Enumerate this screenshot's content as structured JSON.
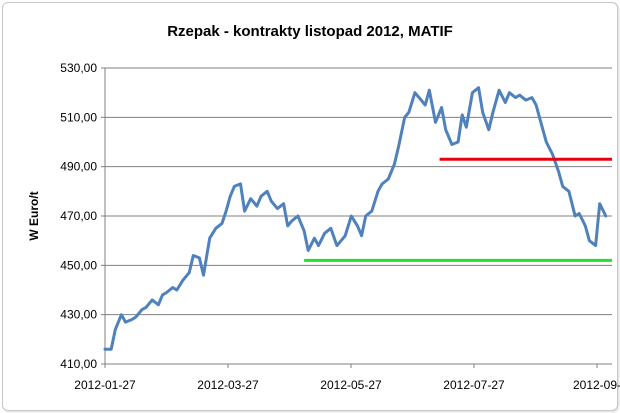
{
  "chart_data": {
    "type": "line",
    "title": "Rzepak - kontrakty listopad 2012, MATIF",
    "xlabel": "",
    "ylabel": "W Euro/t",
    "ylim": [
      410,
      530
    ],
    "y_ticks": [
      "410,00",
      "430,00",
      "450,00",
      "470,00",
      "490,00",
      "510,00",
      "530,00"
    ],
    "x_ticks": [
      "2012-01-27",
      "2012-03-27",
      "2012-05-27",
      "2012-07-27",
      "2012-09-"
    ],
    "x_range": [
      "2012-01-27",
      "2012-09-30"
    ],
    "grid": "horizontal",
    "series": [
      {
        "color": "#4f81bd",
        "x": [
          "2012-01-27",
          "2012-01-30",
          "2012-02-01",
          "2012-02-04",
          "2012-02-06",
          "2012-02-09",
          "2012-02-11",
          "2012-02-14",
          "2012-02-16",
          "2012-02-19",
          "2012-02-22",
          "2012-02-24",
          "2012-02-26",
          "2012-02-29",
          "2012-03-02",
          "2012-03-05",
          "2012-03-08",
          "2012-03-10",
          "2012-03-13",
          "2012-03-15",
          "2012-03-18",
          "2012-03-21",
          "2012-03-24",
          "2012-03-26",
          "2012-03-28",
          "2012-03-30",
          "2012-04-02",
          "2012-04-04",
          "2012-04-07",
          "2012-04-10",
          "2012-04-12",
          "2012-04-15",
          "2012-04-17",
          "2012-04-20",
          "2012-04-23",
          "2012-04-25",
          "2012-04-27",
          "2012-04-30",
          "2012-05-03",
          "2012-05-05",
          "2012-05-08",
          "2012-05-10",
          "2012-05-13",
          "2012-05-16",
          "2012-05-19",
          "2012-05-21",
          "2012-05-23",
          "2012-05-26",
          "2012-05-29",
          "2012-05-31",
          "2012-06-02",
          "2012-06-05",
          "2012-06-08",
          "2012-06-10",
          "2012-06-13",
          "2012-06-16",
          "2012-06-18",
          "2012-06-21",
          "2012-06-23",
          "2012-06-26",
          "2012-06-28",
          "2012-07-01",
          "2012-07-03",
          "2012-07-06",
          "2012-07-09",
          "2012-07-11",
          "2012-07-14",
          "2012-07-17",
          "2012-07-19",
          "2012-07-21",
          "2012-07-24",
          "2012-07-27",
          "2012-07-29",
          "2012-08-01",
          "2012-08-03",
          "2012-08-06",
          "2012-08-09",
          "2012-08-11",
          "2012-08-14",
          "2012-08-16",
          "2012-08-19",
          "2012-08-22",
          "2012-08-24",
          "2012-08-27",
          "2012-08-29",
          "2012-09-01",
          "2012-09-04",
          "2012-09-06",
          "2012-09-09",
          "2012-09-12",
          "2012-09-14",
          "2012-09-17",
          "2012-09-19",
          "2012-09-22",
          "2012-09-24",
          "2012-09-27"
        ],
        "values": [
          416,
          416,
          424,
          430,
          427,
          428,
          429,
          432,
          433,
          436,
          434,
          438,
          439,
          441,
          440,
          444,
          447,
          454,
          453,
          446,
          461,
          465,
          467,
          472,
          478,
          482,
          483,
          472,
          477,
          474,
          478,
          480,
          476,
          473,
          475,
          466,
          468,
          470,
          464,
          456,
          461,
          458,
          463,
          465,
          458,
          460,
          462,
          470,
          466,
          462,
          470,
          472,
          480,
          483,
          485,
          491,
          498,
          510,
          512,
          520,
          518,
          515,
          521,
          508,
          514,
          505,
          499,
          500,
          511,
          506,
          520,
          522,
          512,
          505,
          512,
          521,
          516,
          520,
          518,
          519,
          517,
          518,
          515,
          506,
          500,
          495,
          488,
          482,
          480,
          470,
          471,
          466,
          460,
          458,
          475,
          470
        ]
      }
    ],
    "annotations": [
      {
        "type": "hline",
        "value": 493,
        "x_from": "2012-07-08",
        "x_to": "2012-09-30",
        "color": "#e8000e"
      },
      {
        "type": "hline",
        "value": 452,
        "x_from": "2012-05-03",
        "x_to": "2012-09-30",
        "color": "#2cdc2c"
      }
    ]
  }
}
